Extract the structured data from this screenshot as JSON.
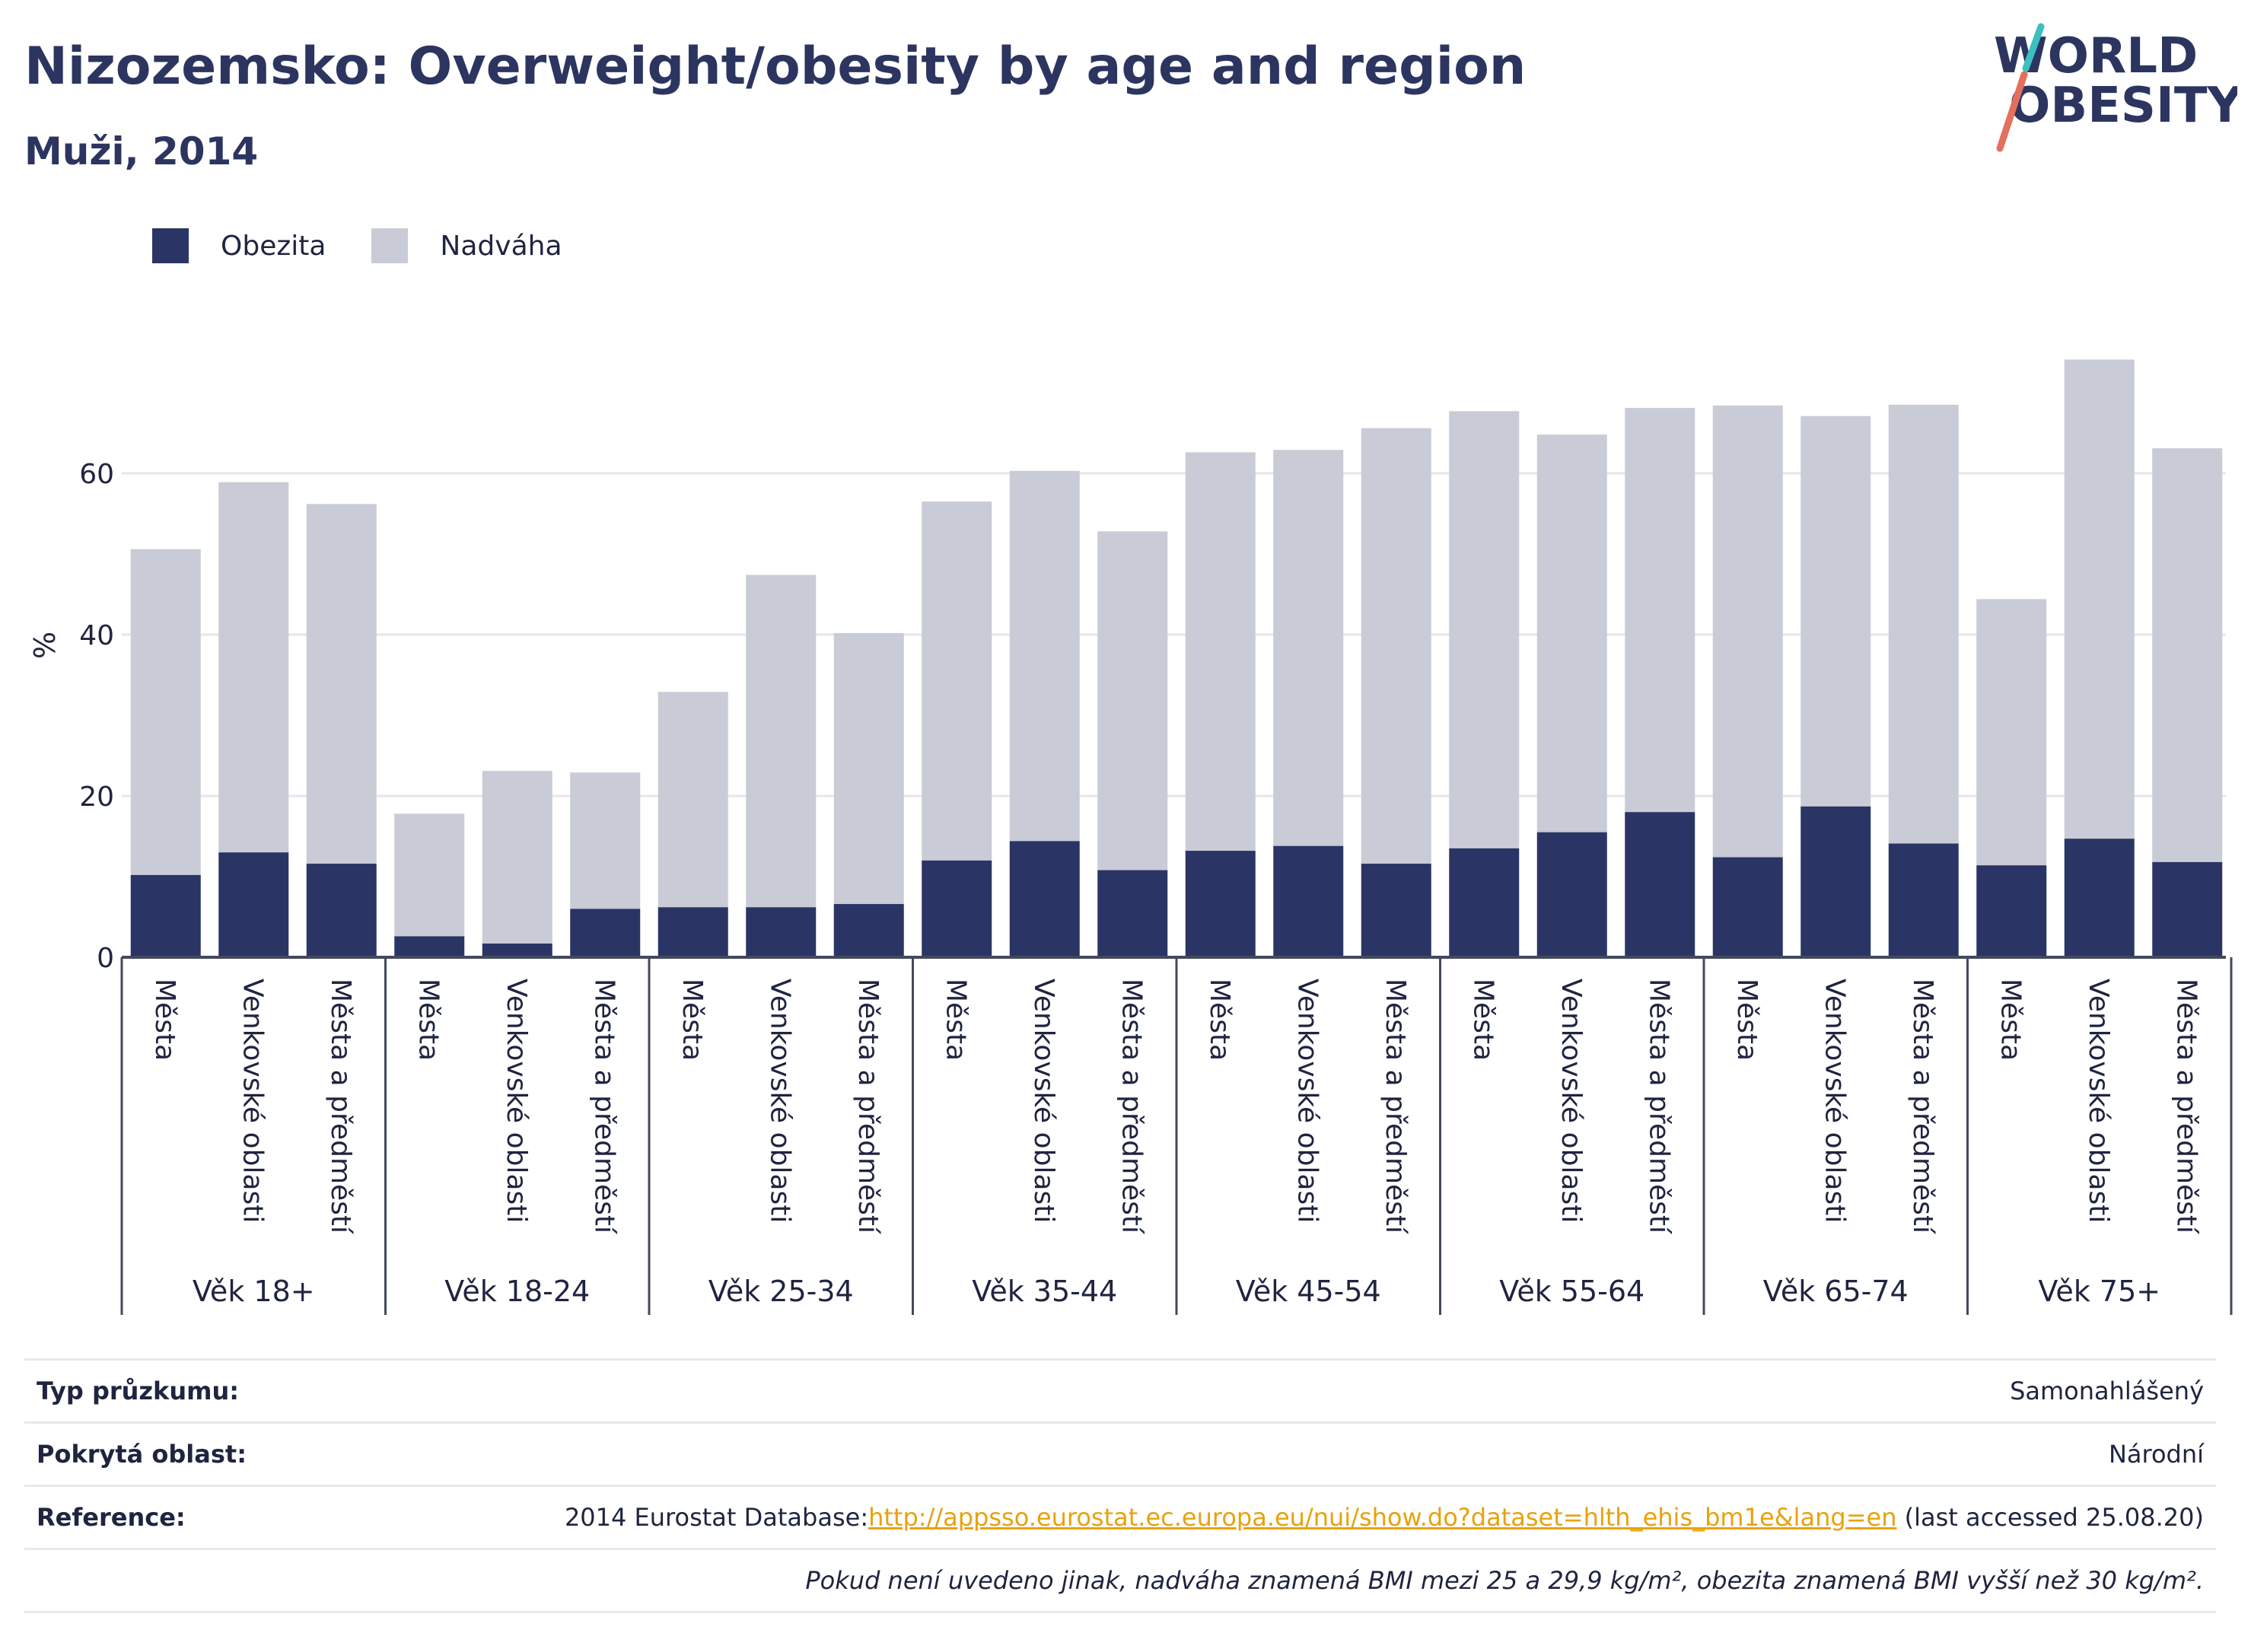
{
  "header": {
    "title": "Nizozemsko: Overweight/obesity by age and region",
    "subtitle": "Muži, 2014"
  },
  "logo": {
    "line1": "WORLD",
    "line2": "OBESITY"
  },
  "colors": {
    "obesity": "#2a3565",
    "overweight": "#c9cbd6",
    "link": "#e8a20c",
    "logo_text": "#2c3560",
    "logo_slash_top": "#3bbfc0",
    "logo_slash_bottom": "#e36f5d"
  },
  "legend": {
    "obesity_label": "Obezita",
    "overweight_label": "Nadváha"
  },
  "chart_data": {
    "type": "bar",
    "stacked": true,
    "ylabel": "%",
    "ylim": [
      0,
      80
    ],
    "yticks": [
      0,
      20,
      40,
      60
    ],
    "grid": true,
    "legend_position": "top-left",
    "groups": [
      {
        "label": "Věk 18+",
        "categories": [
          "Města",
          "Venkovské oblasti",
          "Města a předměstí"
        ]
      },
      {
        "label": "Věk 18-24",
        "categories": [
          "Města",
          "Venkovské oblasti",
          "Města a předměstí"
        ]
      },
      {
        "label": "Věk 25-34",
        "categories": [
          "Města",
          "Venkovské oblasti",
          "Města a předměstí"
        ]
      },
      {
        "label": "Věk 35-44",
        "categories": [
          "Města",
          "Venkovské oblasti",
          "Města a předměstí"
        ]
      },
      {
        "label": "Věk 45-54",
        "categories": [
          "Města",
          "Venkovské oblasti",
          "Města a předměstí"
        ]
      },
      {
        "label": "Věk 55-64",
        "categories": [
          "Města",
          "Venkovské oblasti",
          "Města a předměstí"
        ]
      },
      {
        "label": "Věk 65-74",
        "categories": [
          "Města",
          "Venkovské oblasti",
          "Města a předměstí"
        ]
      },
      {
        "label": "Věk 75+",
        "categories": [
          "Města",
          "Venkovské oblasti",
          "Města a předměstí"
        ]
      }
    ],
    "series": [
      {
        "name": "Obezita",
        "values": [
          10.2,
          13.0,
          11.6,
          2.6,
          1.7,
          6.0,
          6.2,
          6.2,
          6.6,
          12.0,
          14.4,
          10.8,
          13.2,
          13.8,
          11.6,
          13.5,
          15.5,
          18.0,
          12.4,
          18.7,
          14.1,
          11.4,
          14.7,
          11.8
        ]
      },
      {
        "name": "Nadváha",
        "values": [
          40.4,
          45.9,
          44.6,
          15.2,
          21.4,
          16.9,
          26.7,
          41.2,
          33.6,
          44.5,
          45.9,
          42.0,
          49.4,
          49.1,
          54.0,
          54.2,
          49.3,
          50.1,
          56.0,
          48.4,
          54.4,
          33.0,
          59.4,
          51.3
        ]
      }
    ]
  },
  "info": {
    "survey_type_label": "Typ průzkumu:",
    "survey_type_value": "Samonahlášený",
    "coverage_label": "Pokrytá oblast:",
    "coverage_value": "Národní",
    "reference_label": "Reference:",
    "reference_prefix": "2014 Eurostat Database:",
    "reference_link": "http://appsso.eurostat.ec.europa.eu/nui/show.do?dataset=hlth_ehis_bm1e&lang=en",
    "reference_suffix": " (last accessed 25.08.20)",
    "note": "Pokud není uvedeno jinak, nadváha znamená BMI mezi 25 a 29,9 kg/m², obezita znamená BMI vyšší než 30 kg/m²."
  }
}
